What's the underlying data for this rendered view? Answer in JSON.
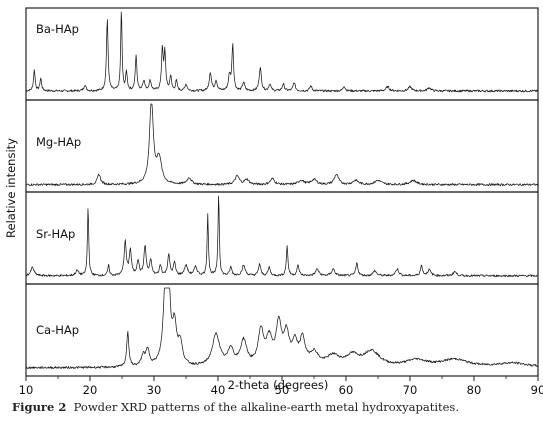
{
  "chart_data": {
    "type": "line",
    "xlabel": "2-theta (degrees)",
    "ylabel": "Relative intensity",
    "xlim": [
      10,
      90
    ],
    "xticks": [
      10,
      20,
      30,
      40,
      50,
      60,
      70,
      80,
      90
    ],
    "grid": false,
    "legend": "none",
    "series": [
      {
        "name": "Ba-HAp",
        "baseline": 0.06,
        "peaks": [
          [
            11.3,
            0.25,
            0.15
          ],
          [
            12.3,
            0.15,
            0.15
          ],
          [
            19.2,
            0.07,
            0.2
          ],
          [
            22.7,
            0.85,
            0.15
          ],
          [
            24.9,
            1.0,
            0.12
          ],
          [
            25.7,
            0.22,
            0.15
          ],
          [
            27.2,
            0.42,
            0.15
          ],
          [
            28.4,
            0.12,
            0.2
          ],
          [
            29.4,
            0.12,
            0.2
          ],
          [
            31.3,
            0.5,
            0.15
          ],
          [
            31.7,
            0.45,
            0.15
          ],
          [
            32.6,
            0.18,
            0.15
          ],
          [
            33.5,
            0.12,
            0.15
          ],
          [
            35.0,
            0.08,
            0.2
          ],
          [
            38.8,
            0.22,
            0.2
          ],
          [
            39.7,
            0.12,
            0.2
          ],
          [
            41.8,
            0.18,
            0.2
          ],
          [
            42.3,
            0.55,
            0.15
          ],
          [
            44.0,
            0.1,
            0.2
          ],
          [
            46.6,
            0.28,
            0.2
          ],
          [
            48.1,
            0.08,
            0.2
          ],
          [
            50.2,
            0.08,
            0.2
          ],
          [
            51.9,
            0.1,
            0.2
          ],
          [
            54.5,
            0.06,
            0.2
          ],
          [
            59.7,
            0.06,
            0.2
          ],
          [
            66.5,
            0.05,
            0.3
          ],
          [
            70.0,
            0.05,
            0.3
          ],
          [
            73.0,
            0.04,
            0.3
          ]
        ]
      },
      {
        "name": "Mg-HAp",
        "baseline": 0.04,
        "peaks": [
          [
            21.4,
            0.12,
            0.3
          ],
          [
            29.6,
            1.0,
            0.35
          ],
          [
            30.8,
            0.3,
            0.45
          ],
          [
            35.5,
            0.08,
            0.4
          ],
          [
            43.0,
            0.1,
            0.4
          ],
          [
            44.5,
            0.06,
            0.4
          ],
          [
            48.5,
            0.07,
            0.4
          ],
          [
            53.0,
            0.05,
            0.5
          ],
          [
            55.0,
            0.06,
            0.5
          ],
          [
            58.5,
            0.12,
            0.4
          ],
          [
            61.5,
            0.05,
            0.5
          ],
          [
            65.0,
            0.05,
            0.6
          ],
          [
            70.5,
            0.05,
            0.6
          ]
        ]
      },
      {
        "name": "Sr-HAp",
        "baseline": 0.05,
        "peaks": [
          [
            11.0,
            0.1,
            0.3
          ],
          [
            18.0,
            0.06,
            0.3
          ],
          [
            19.7,
            0.82,
            0.12
          ],
          [
            22.9,
            0.12,
            0.15
          ],
          [
            25.5,
            0.4,
            0.2
          ],
          [
            26.3,
            0.3,
            0.2
          ],
          [
            27.5,
            0.18,
            0.2
          ],
          [
            28.6,
            0.35,
            0.2
          ],
          [
            29.5,
            0.18,
            0.2
          ],
          [
            31.0,
            0.12,
            0.2
          ],
          [
            32.3,
            0.25,
            0.2
          ],
          [
            33.2,
            0.15,
            0.2
          ],
          [
            35.0,
            0.12,
            0.3
          ],
          [
            36.5,
            0.1,
            0.3
          ],
          [
            38.4,
            0.74,
            0.12
          ],
          [
            40.1,
            0.98,
            0.12
          ],
          [
            42.0,
            0.1,
            0.2
          ],
          [
            44.0,
            0.12,
            0.3
          ],
          [
            46.5,
            0.14,
            0.2
          ],
          [
            48.0,
            0.1,
            0.2
          ],
          [
            50.8,
            0.35,
            0.15
          ],
          [
            52.5,
            0.12,
            0.2
          ],
          [
            55.5,
            0.08,
            0.3
          ],
          [
            58.0,
            0.08,
            0.3
          ],
          [
            61.7,
            0.15,
            0.2
          ],
          [
            64.5,
            0.06,
            0.3
          ],
          [
            68.0,
            0.08,
            0.3
          ],
          [
            71.8,
            0.12,
            0.2
          ],
          [
            73.0,
            0.07,
            0.3
          ],
          [
            77.0,
            0.05,
            0.3
          ]
        ]
      },
      {
        "name": "Ca-HAp",
        "baseline": 0.05,
        "peaks": [
          [
            25.9,
            0.42,
            0.2
          ],
          [
            28.3,
            0.12,
            0.35
          ],
          [
            29.0,
            0.18,
            0.35
          ],
          [
            31.8,
            0.95,
            0.4
          ],
          [
            32.3,
            0.75,
            0.3
          ],
          [
            33.2,
            0.45,
            0.4
          ],
          [
            34.1,
            0.25,
            0.4
          ],
          [
            39.7,
            0.38,
            0.7
          ],
          [
            42.0,
            0.2,
            0.5
          ],
          [
            44.0,
            0.3,
            0.6
          ],
          [
            46.7,
            0.4,
            0.5
          ],
          [
            48.0,
            0.3,
            0.6
          ],
          [
            49.5,
            0.48,
            0.5
          ],
          [
            50.7,
            0.35,
            0.5
          ],
          [
            52.0,
            0.25,
            0.5
          ],
          [
            53.2,
            0.3,
            0.5
          ],
          [
            55.0,
            0.15,
            0.8
          ],
          [
            58.0,
            0.12,
            1.2
          ],
          [
            61.0,
            0.12,
            1.2
          ],
          [
            64.0,
            0.18,
            1.5
          ],
          [
            71.0,
            0.08,
            2.0
          ],
          [
            77.0,
            0.09,
            2.5
          ],
          [
            86.0,
            0.05,
            3.0
          ]
        ]
      }
    ]
  },
  "caption": {
    "label": "Figure 2",
    "text": "Powder XRD patterns of the alkaline-earth metal hydroxyapatites."
  }
}
